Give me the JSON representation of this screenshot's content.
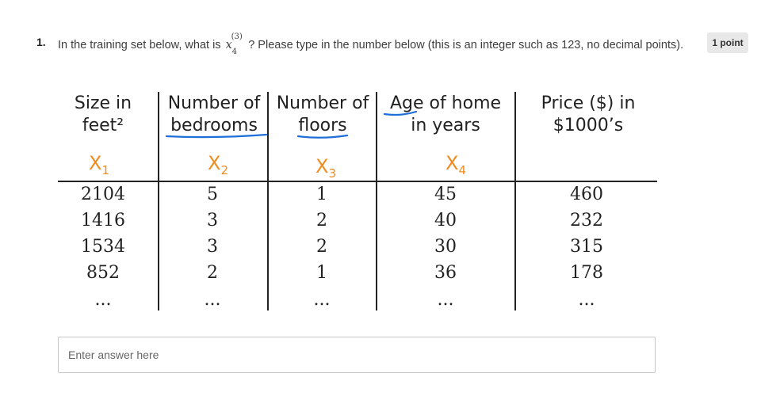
{
  "question": {
    "number": "1.",
    "text_before": "In the training set below, what is",
    "math_base": "x",
    "math_superscript": "(3)",
    "math_subscript": "4",
    "text_after": "? Please type in the number below (this is an integer such as 123, no decimal points).",
    "points": "1 point"
  },
  "table": {
    "headers": [
      {
        "line1": "Size in",
        "line2": "feet²"
      },
      {
        "line1": "Number of",
        "line2": "bedrooms"
      },
      {
        "line1": "Number of",
        "line2": "floors"
      },
      {
        "line1": "Age of home",
        "line2": "in years"
      },
      {
        "line1": "Price ($) in",
        "line2": "$1000’s"
      }
    ],
    "variables": [
      {
        "name": "X",
        "index": "1"
      },
      {
        "name": "X",
        "index": "2"
      },
      {
        "name": "X",
        "index": "3"
      },
      {
        "name": "X",
        "index": "4"
      }
    ],
    "rows": [
      [
        "2104",
        "5",
        "1",
        "45",
        "460"
      ],
      [
        "1416",
        "3",
        "2",
        "40",
        "232"
      ],
      [
        "1534",
        "3",
        "2",
        "30",
        "315"
      ],
      [
        "852",
        "2",
        "1",
        "36",
        "178"
      ]
    ],
    "ellipsis": [
      "...",
      "...",
      "...",
      "...",
      "..."
    ],
    "annotation_color": "#f08c1e",
    "underline_color": "#1e6fd9"
  },
  "answer": {
    "placeholder": "Enter answer here",
    "value": ""
  }
}
